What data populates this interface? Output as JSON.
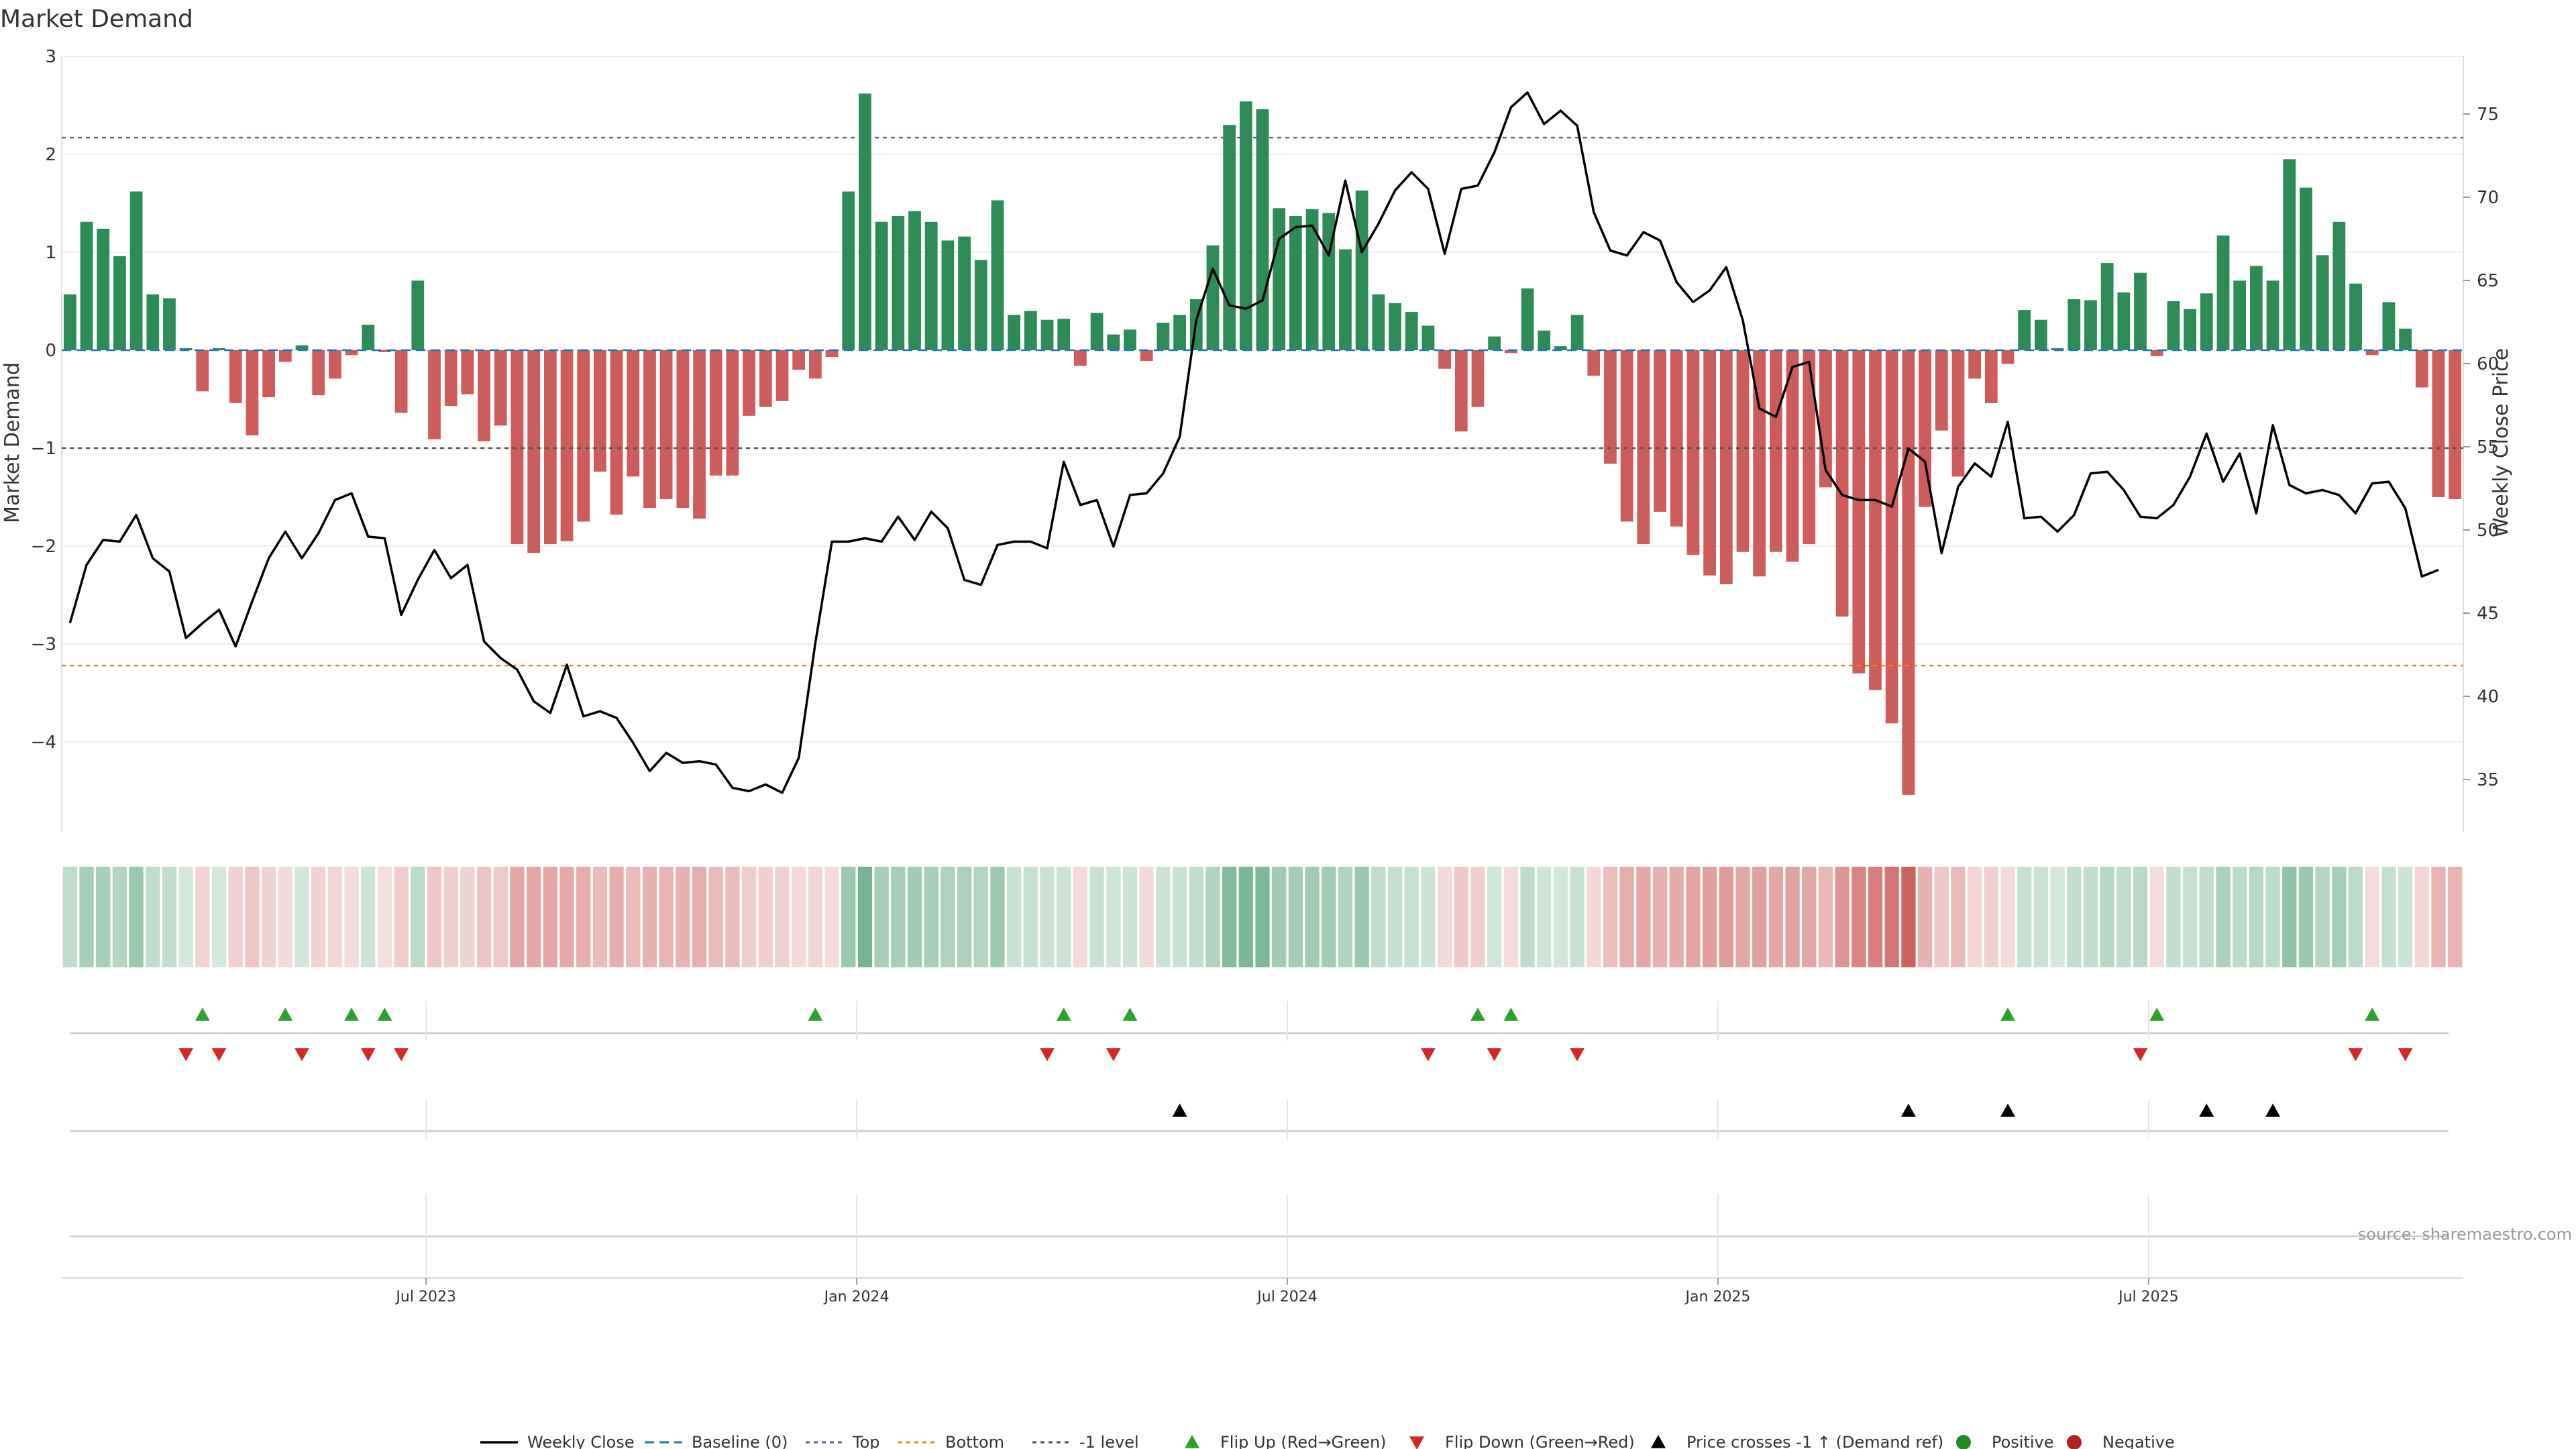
{
  "chart_data": {
    "type": "bar",
    "title": "Market Demand",
    "ylabel": "Market Demand",
    "y2label": "Weekly Close Price",
    "ylim": [
      -4.95,
      3.0
    ],
    "y2lim": [
      32,
      78
    ],
    "yticks": [
      "3",
      "2",
      "1",
      "0",
      "−1",
      "−2",
      "−3",
      "−4"
    ],
    "y2ticks": [
      "75",
      "70",
      "65",
      "60",
      "55",
      "50",
      "45",
      "40",
      "35"
    ],
    "xticks": [
      "Jul 2023",
      "Jan 2024",
      "Jul 2024",
      "Jan 2025",
      "Jul 2025"
    ],
    "xtick_weeks": [
      22,
      48,
      74,
      100,
      126
    ],
    "levels": {
      "top": 2.17,
      "neg_one": -1.0,
      "bottom": -3.22,
      "baseline": 0
    },
    "demand": [
      0.57,
      1.31,
      1.24,
      0.96,
      1.62,
      0.57,
      0.53,
      0.02,
      -0.42,
      0.02,
      -0.54,
      -0.87,
      -0.48,
      -0.12,
      0.05,
      -0.46,
      -0.29,
      -0.05,
      0.26,
      -0.02,
      -0.64,
      0.71,
      -0.91,
      -0.57,
      -0.45,
      -0.93,
      -0.77,
      -1.98,
      -2.07,
      -1.98,
      -1.95,
      -1.75,
      -1.24,
      -1.68,
      -1.29,
      -1.61,
      -1.52,
      -1.61,
      -1.72,
      -1.28,
      -1.28,
      -0.67,
      -0.58,
      -0.52,
      -0.2,
      -0.29,
      -0.07,
      1.62,
      2.62,
      1.31,
      1.37,
      1.42,
      1.31,
      1.12,
      1.16,
      0.92,
      1.53,
      0.36,
      0.4,
      0.31,
      0.32,
      -0.16,
      0.38,
      0.16,
      0.21,
      -0.11,
      0.28,
      0.36,
      0.52,
      1.07,
      2.3,
      2.54,
      2.46,
      1.45,
      1.37,
      1.44,
      1.4,
      1.03,
      1.63,
      0.57,
      0.48,
      0.39,
      0.25,
      -0.19,
      -0.83,
      -0.58,
      0.14,
      -0.03,
      0.63,
      0.2,
      0.04,
      0.36,
      -0.26,
      -1.16,
      -1.75,
      -1.98,
      -1.65,
      -1.8,
      -2.09,
      -2.3,
      -2.39,
      -2.06,
      -2.31,
      -2.06,
      -2.16,
      -1.98,
      -1.4,
      -2.72,
      -3.3,
      -3.47,
      -3.81,
      -4.54,
      -1.6,
      -0.82,
      -1.29,
      -0.29,
      -0.54,
      -0.14,
      0.41,
      0.31,
      0.02,
      0.52,
      0.51,
      0.89,
      0.59,
      0.79,
      -0.06,
      0.5,
      0.42,
      0.58,
      1.17,
      0.71,
      0.86,
      0.71,
      1.95,
      1.66,
      0.97,
      1.31,
      0.68,
      -0.05,
      0.49,
      0.22,
      -0.38,
      -1.5,
      -1.52
    ],
    "close": [
      44.4,
      47.9,
      49.4,
      49.3,
      50.9,
      48.3,
      47.5,
      43.5,
      44.4,
      45.2,
      43,
      45.7,
      48.3,
      49.9,
      48.3,
      49.8,
      51.8,
      52.2,
      49.6,
      49.5,
      44.9,
      47,
      48.8,
      47.1,
      47.9,
      43.3,
      42.3,
      41.6,
      39.7,
      39,
      41.9,
      38.8,
      39.1,
      38.7,
      37.2,
      35.5,
      36.6,
      36,
      36.1,
      35.9,
      34.5,
      34.3,
      34.7,
      34.2,
      36.3,
      43.2,
      49.3,
      49.3,
      49.5,
      49.3,
      50.8,
      49.4,
      51.1,
      50.1,
      47,
      46.7,
      49.1,
      49.3,
      49.3,
      48.9,
      54.1,
      51.5,
      51.8,
      49,
      52.1,
      52.2,
      53.4,
      55.6,
      62.6,
      65.7,
      63.5,
      63.3,
      63.8,
      67.5,
      68.2,
      68.3,
      66.5,
      71,
      66.7,
      68.4,
      70.4,
      71.5,
      70.5,
      66.6,
      70.5,
      70.7,
      72.7,
      75.4,
      76.3,
      74.4,
      75.2,
      74.3,
      69.1,
      66.8,
      66.5,
      67.9,
      67.4,
      64.9,
      63.7,
      64.4,
      65.8,
      62.6,
      57.3,
      56.8,
      59.8,
      60.1,
      53.6,
      52.1,
      51.8,
      51.8,
      51.4,
      54.9,
      54.1,
      48.6,
      52.6,
      54,
      53.2,
      56.5,
      50.7,
      50.8,
      49.9,
      50.9,
      53.4,
      53.5,
      52.4,
      50.8,
      50.7,
      51.5,
      53.2,
      55.8,
      52.9,
      54.6,
      51,
      56.3,
      52.7,
      52.2,
      52.4,
      52.1,
      51,
      52.8,
      52.9,
      51.3,
      47.2,
      47.6
    ],
    "flip_up_weeks": [
      8,
      13,
      17,
      19,
      45,
      60,
      64,
      85,
      87,
      117,
      126,
      139
    ],
    "flip_down_weeks": [
      7,
      9,
      14,
      18,
      20,
      59,
      63,
      82,
      86,
      91,
      125,
      138,
      141
    ],
    "price_cross_weeks": [
      67,
      111,
      117,
      129,
      133
    ],
    "legend": [
      {
        "label": "Weekly Close",
        "kind": "line",
        "color": "#000000"
      },
      {
        "label": "Baseline (0)",
        "kind": "dash",
        "color": "#1f77b4"
      },
      {
        "label": "Top",
        "kind": "dot",
        "color": "#6b5b95"
      },
      {
        "label": "Bottom",
        "kind": "dot",
        "color": "#ff7f0e"
      },
      {
        "label": "-1 level",
        "kind": "dot",
        "color": "#555555"
      },
      {
        "label": "Flip Up (Red→Green)",
        "kind": "tri-up",
        "color": "#2ca02c"
      },
      {
        "label": "Flip Down (Green→Red)",
        "kind": "tri-down",
        "color": "#d62728"
      },
      {
        "label": "Price crosses -1 ↑ (Demand ref)",
        "kind": "tri-up",
        "color": "#000000"
      },
      {
        "label": "Positive",
        "kind": "circle",
        "color": "#228b22"
      },
      {
        "label": "Negative",
        "kind": "circle",
        "color": "#b22222"
      }
    ],
    "colors": {
      "positive": "#2e8b57",
      "negative": "#cd5c5c",
      "close_line": "#000000",
      "top_line": "#6b5b95",
      "bottom_line": "#ff7f0e",
      "neg1_line": "#555555",
      "baseline": "#1f77b4"
    },
    "source": "source: sharemaestro.com"
  }
}
